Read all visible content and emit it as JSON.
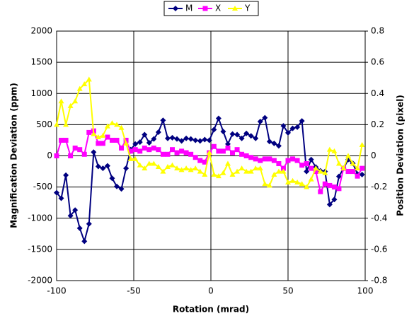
{
  "chart_data": {
    "type": "line",
    "xlabel": "Rotation (mrad)",
    "ylabel": "Magnification Deviation (ppm)",
    "y2label": "Position Deviation (pixel)",
    "x": [
      -100,
      -97,
      -94,
      -91,
      -88,
      -85,
      -82,
      -79,
      -76,
      -73,
      -70,
      -67,
      -64,
      -61,
      -58,
      -55,
      -52,
      -49,
      -46,
      -43,
      -40,
      -37,
      -34,
      -31,
      -28,
      -25,
      -22,
      -19,
      -16,
      -13,
      -10,
      -7,
      -4,
      -1,
      2,
      5,
      8,
      11,
      14,
      17,
      20,
      23,
      26,
      29,
      32,
      35,
      38,
      41,
      44,
      47,
      50,
      53,
      56,
      59,
      62,
      65,
      68,
      71,
      74,
      77,
      80,
      83,
      86,
      89,
      92,
      95,
      98
    ],
    "xlim": [
      -100,
      100
    ],
    "xticks": [
      -100,
      -50,
      0,
      50,
      100
    ],
    "ylim": [
      -2000,
      2000
    ],
    "yticks": [
      -2000,
      -1500,
      -1000,
      -500,
      0,
      500,
      1000,
      1500,
      2000
    ],
    "y2lim": [
      -0.8,
      0.8
    ],
    "y2ticks": [
      -0.8,
      -0.6,
      -0.4,
      -0.2,
      0,
      0.2,
      0.4,
      0.6,
      0.8
    ],
    "grid": true,
    "legend": "top",
    "series": [
      {
        "name": "M",
        "color": "#000080",
        "marker": "diamond",
        "values": [
          -590,
          -680,
          -310,
          -960,
          -870,
          -1160,
          -1370,
          -1090,
          60,
          -170,
          -200,
          -160,
          -360,
          -490,
          -530,
          -200,
          100,
          190,
          220,
          340,
          210,
          270,
          380,
          570,
          280,
          290,
          270,
          240,
          280,
          270,
          250,
          240,
          260,
          250,
          420,
          600,
          390,
          190,
          350,
          340,
          280,
          360,
          320,
          280,
          550,
          610,
          230,
          200,
          160,
          480,
          370,
          440,
          460,
          560,
          -250,
          -60,
          -180,
          -240,
          -250,
          -780,
          -700,
          -330,
          -200,
          -60,
          -120,
          -290,
          -300
        ]
      },
      {
        "name": "X",
        "color": "#ff00ff",
        "marker": "square",
        "axis": "y2",
        "values": [
          0.0,
          0.1,
          0.1,
          0.0,
          0.05,
          0.04,
          0.01,
          0.15,
          0.16,
          0.08,
          0.08,
          0.12,
          0.1,
          0.1,
          0.05,
          0.1,
          0.03,
          0.04,
          0.03,
          0.05,
          0.04,
          0.05,
          0.04,
          0.01,
          0.01,
          0.04,
          0.02,
          0.03,
          0.02,
          0.01,
          -0.01,
          -0.03,
          -0.04,
          0.02,
          0.06,
          0.03,
          0.03,
          0.05,
          0.02,
          0.04,
          0.01,
          0.0,
          -0.01,
          -0.02,
          -0.03,
          -0.02,
          -0.02,
          -0.03,
          -0.05,
          -0.08,
          -0.03,
          -0.02,
          -0.03,
          -0.06,
          -0.05,
          -0.08,
          -0.1,
          -0.23,
          -0.18,
          -0.19,
          -0.2,
          -0.21,
          -0.08,
          -0.1,
          -0.1,
          -0.13,
          -0.08
        ]
      },
      {
        "name": "Y",
        "color": "#ffff00",
        "marker": "triangle",
        "axis": "y2",
        "values": [
          0.2,
          0.35,
          0.2,
          0.32,
          0.35,
          0.43,
          0.46,
          0.49,
          0.14,
          0.12,
          0.13,
          0.19,
          0.21,
          0.2,
          0.18,
          0.08,
          -0.02,
          -0.02,
          -0.06,
          -0.08,
          -0.05,
          -0.05,
          -0.07,
          -0.1,
          -0.07,
          -0.06,
          -0.08,
          -0.09,
          -0.08,
          -0.09,
          -0.08,
          -0.1,
          -0.12,
          0.02,
          -0.12,
          -0.13,
          -0.11,
          -0.05,
          -0.12,
          -0.1,
          -0.08,
          -0.1,
          -0.1,
          -0.08,
          -0.08,
          -0.18,
          -0.19,
          -0.12,
          -0.1,
          -0.1,
          -0.17,
          -0.16,
          -0.17,
          -0.18,
          -0.2,
          -0.15,
          -0.08,
          -0.1,
          -0.11,
          0.04,
          0.03,
          -0.05,
          -0.08,
          0.0,
          -0.05,
          -0.08,
          0.07
        ]
      }
    ]
  }
}
